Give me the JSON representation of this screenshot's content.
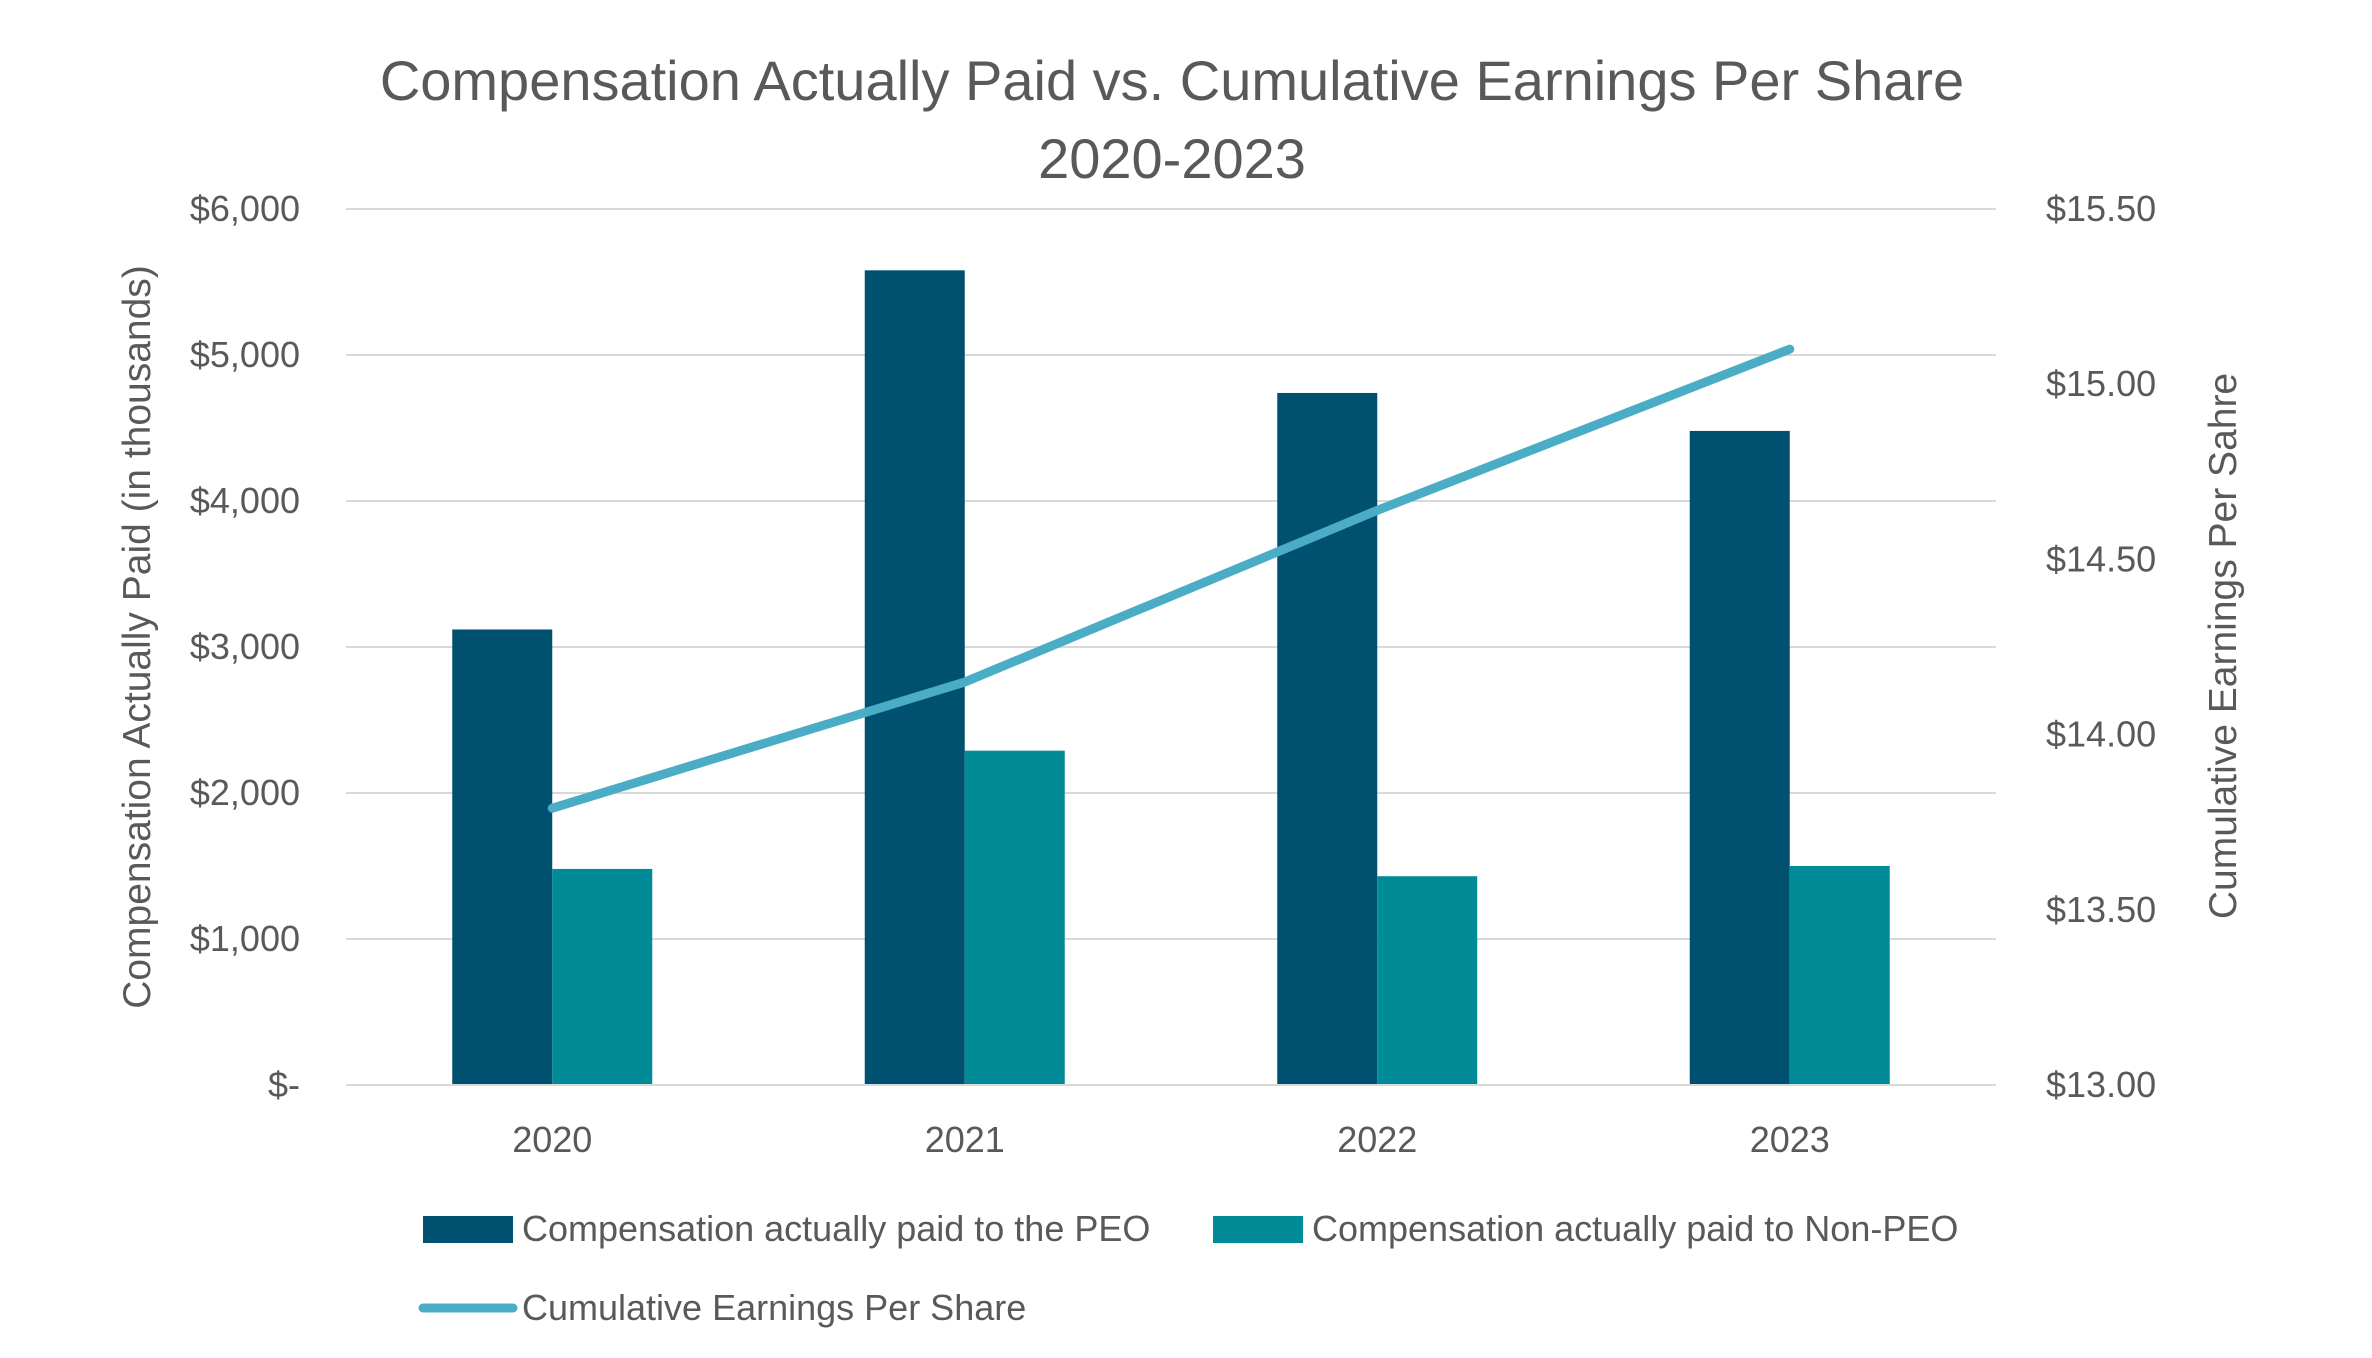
{
  "chart_data": {
    "type": "bar",
    "title": "Compensation Actually Paid vs. Cumulative Earnings Per Share",
    "subtitle": "2020-2023",
    "categories": [
      "2020",
      "2021",
      "2022",
      "2023"
    ],
    "series": [
      {
        "name": "Compensation actually paid to the PEO",
        "kind": "bar",
        "axis": "left",
        "color": "#005070",
        "values": [
          3120,
          5580,
          4740,
          4480
        ]
      },
      {
        "name": "Compensation actually paid to Non-PEO",
        "kind": "bar",
        "axis": "left",
        "color": "#008B96",
        "values": [
          1480,
          2290,
          1430,
          1500
        ]
      },
      {
        "name": "Cumulative Earnings Per Share",
        "kind": "line",
        "axis": "right",
        "color": "#4BACC6",
        "values": [
          13.79,
          14.15,
          14.64,
          15.1
        ]
      }
    ],
    "y_left": {
      "label": "Compensation Actually Paid (in thousands)",
      "lim": [
        0,
        6000
      ],
      "ticks": [
        0,
        1000,
        2000,
        3000,
        4000,
        5000,
        6000
      ],
      "tick_labels": [
        "$-",
        "$1,000",
        "$2,000",
        "$3,000",
        "$4,000",
        "$5,000",
        "$6,000"
      ]
    },
    "y_right": {
      "label": "Cumulative Earnings Per Sahre",
      "lim": [
        13.0,
        15.5
      ],
      "ticks": [
        13.0,
        13.5,
        14.0,
        14.5,
        15.0,
        15.5
      ],
      "tick_labels": [
        "$13.00",
        "$13.50",
        "$14.00",
        "$14.50",
        "$15.00",
        "$15.50"
      ]
    },
    "grid": true,
    "legend_position": "bottom",
    "gridline_color": "#D9D9D9"
  }
}
